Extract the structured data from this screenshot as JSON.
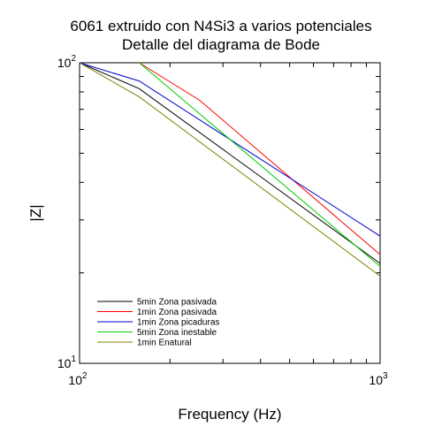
{
  "chart_data": {
    "type": "line",
    "title": "6061 extruido con N4Si3 a varios potenciales",
    "subtitle": "Detalle del diagrama de Bode",
    "xlabel": "Frequency (Hz)",
    "ylabel": "|Z|",
    "xscale": "log",
    "yscale": "log",
    "xlim": [
      100,
      1000
    ],
    "ylim": [
      10,
      100
    ],
    "x_ticks": [
      {
        "base": "10",
        "exp": "2",
        "value": 100
      },
      {
        "base": "10",
        "exp": "3",
        "value": 1000
      }
    ],
    "y_ticks": [
      {
        "base": "10",
        "exp": "1",
        "value": 10
      },
      {
        "base": "10",
        "exp": "2",
        "value": 100
      }
    ],
    "grid": false,
    "legend_position": "bottom-left",
    "series": [
      {
        "name": "5min Zona pasivada",
        "color": "#000000",
        "x": [
          100,
          158,
          1000
        ],
        "y": [
          100,
          82,
          21.5
        ]
      },
      {
        "name": "1min Zona pasivada",
        "color": "#ff0000",
        "x": [
          158,
          251,
          1000
        ],
        "y": [
          100,
          75,
          23
        ]
      },
      {
        "name": "1min Zona picaduras",
        "color": "#0000cc",
        "x": [
          100,
          158,
          1000
        ],
        "y": [
          100,
          87,
          26.5
        ]
      },
      {
        "name": "5min Zona inestable",
        "color": "#00cc00",
        "x": [
          158,
          1000
        ],
        "y": [
          100,
          21
        ]
      },
      {
        "name": "1min Enatural",
        "color": "#808000",
        "x": [
          100,
          158,
          1000
        ],
        "y": [
          100,
          77,
          19.5
        ]
      }
    ]
  }
}
